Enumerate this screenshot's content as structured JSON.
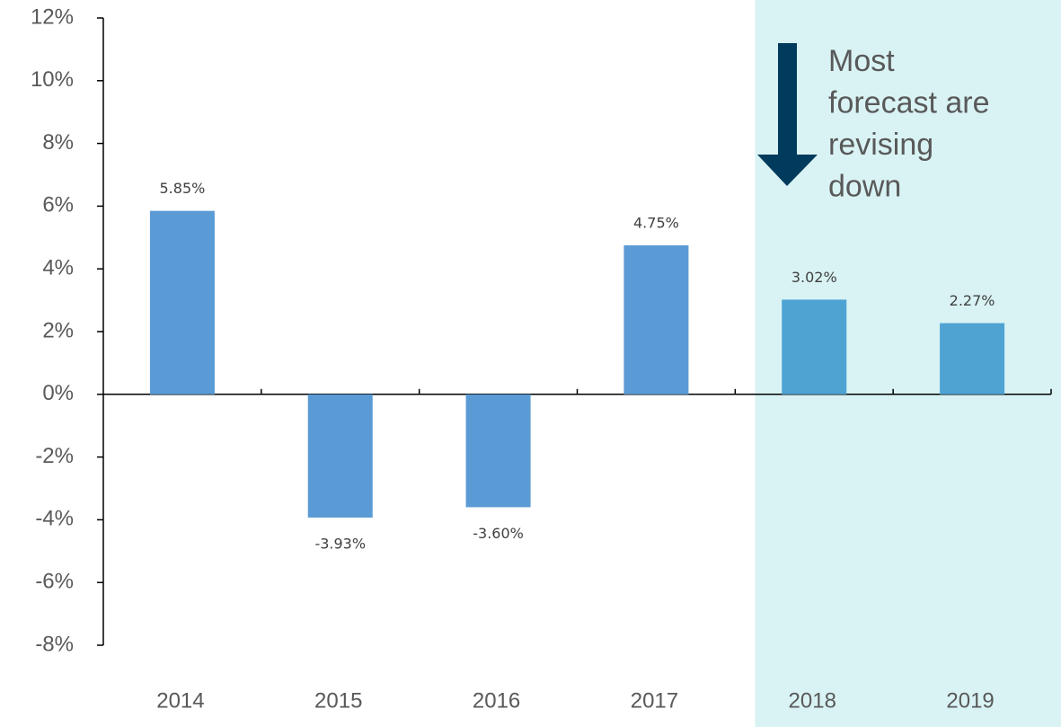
{
  "chart_data": {
    "type": "bar",
    "categories": [
      "2014",
      "2015",
      "2016",
      "2017",
      "2018",
      "2019"
    ],
    "values": [
      5.85,
      -3.93,
      -3.6,
      4.75,
      3.02,
      2.27
    ],
    "value_labels": [
      "5.85%",
      "-3.93%",
      "-3.60%",
      "4.75%",
      "3.02%",
      "2.27%"
    ],
    "colors": [
      "#5b9bd5",
      "#5b9bd5",
      "#5b9bd5",
      "#5b9bd5",
      "#4fa3d3",
      "#4fa3d3"
    ],
    "ylim": [
      -8,
      12
    ],
    "yticks": [
      {
        "value": -8,
        "label": "-8%"
      },
      {
        "value": -6,
        "label": "-6%"
      },
      {
        "value": -4,
        "label": "-4%"
      },
      {
        "value": -2,
        "label": "-2%"
      },
      {
        "value": 0,
        "label": "0%"
      },
      {
        "value": 2,
        "label": "2%"
      },
      {
        "value": 4,
        "label": "4%"
      },
      {
        "value": 6,
        "label": "6%"
      },
      {
        "value": 8,
        "label": "8%"
      },
      {
        "value": 10,
        "label": "10%"
      },
      {
        "value": 12,
        "label": "12%"
      }
    ],
    "highlight": {
      "from": "2018",
      "to": "2019",
      "color": "#d9f3f4"
    },
    "annotation": [
      "Most",
      "forecast are",
      "revising",
      "down"
    ],
    "grid": false
  }
}
